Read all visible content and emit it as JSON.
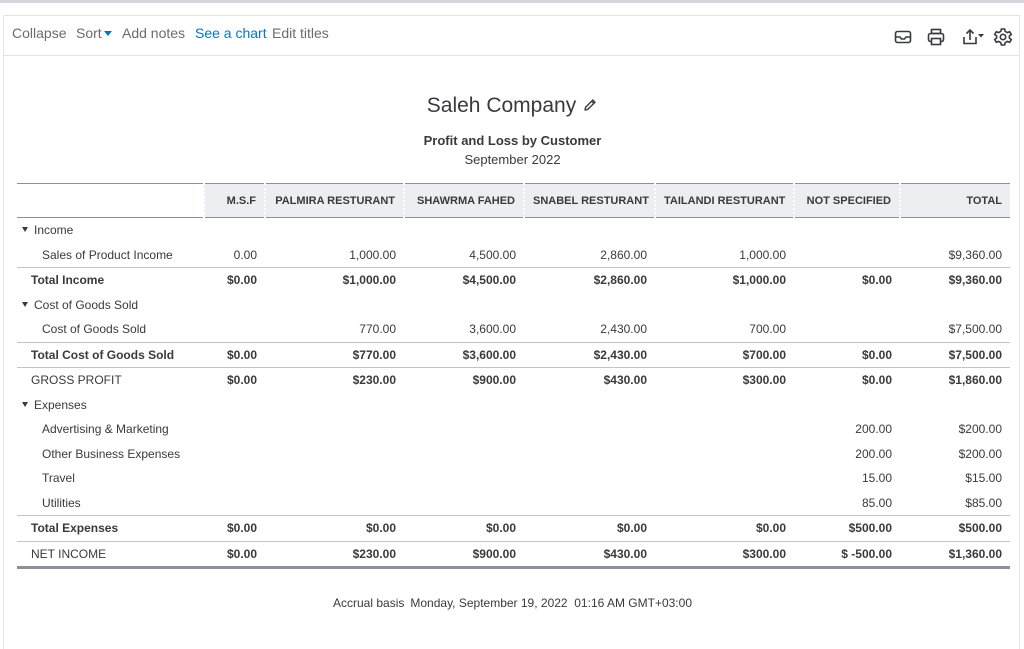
{
  "toolbar": {
    "collapse": "Collapse",
    "sort": "Sort",
    "add_notes": "Add notes",
    "see_chart": "See a chart",
    "edit_titles": "Edit titles",
    "icons": [
      "email-icon",
      "print-icon",
      "export-icon",
      "settings-icon"
    ]
  },
  "report": {
    "company": "Saleh Company",
    "title": "Profit and Loss by Customer",
    "period": "September 2022"
  },
  "columns": [
    "M.S.F",
    "PALMIRA RESTURANT",
    "SHAWRMA FAHED",
    "SNABEL RESTURANT",
    "TAILANDI RESTURANT",
    "NOT SPECIFIED",
    "TOTAL"
  ],
  "rows": [
    {
      "label": "Income",
      "type": "section",
      "cells": [
        "",
        "",
        "",
        "",
        "",
        "",
        ""
      ]
    },
    {
      "label": "Sales of Product Income",
      "type": "sub",
      "cells": [
        "0.00",
        "1,000.00",
        "4,500.00",
        "2,860.00",
        "1,000.00",
        "",
        "$9,360.00"
      ]
    },
    {
      "label": "Total Income",
      "type": "total",
      "cells": [
        "$0.00",
        "$1,000.00",
        "$4,500.00",
        "$2,860.00",
        "$1,000.00",
        "$0.00",
        "$9,360.00"
      ]
    },
    {
      "label": "Cost of Goods Sold",
      "type": "section",
      "cells": [
        "",
        "",
        "",
        "",
        "",
        "",
        ""
      ]
    },
    {
      "label": "Cost of Goods Sold",
      "type": "sub",
      "cells": [
        "",
        "770.00",
        "3,600.00",
        "2,430.00",
        "700.00",
        "",
        "$7,500.00"
      ]
    },
    {
      "label": "Total Cost of Goods Sold",
      "type": "total",
      "cells": [
        "$0.00",
        "$770.00",
        "$3,600.00",
        "$2,430.00",
        "$700.00",
        "$0.00",
        "$7,500.00"
      ]
    },
    {
      "label": "GROSS PROFIT",
      "type": "gross",
      "cells": [
        "$0.00",
        "$230.00",
        "$900.00",
        "$430.00",
        "$300.00",
        "$0.00",
        "$1,860.00"
      ]
    },
    {
      "label": "Expenses",
      "type": "section",
      "cells": [
        "",
        "",
        "",
        "",
        "",
        "",
        ""
      ]
    },
    {
      "label": "Advertising & Marketing",
      "type": "sub",
      "cells": [
        "",
        "",
        "",
        "",
        "",
        "200.00",
        "$200.00"
      ]
    },
    {
      "label": "Other Business Expenses",
      "type": "sub",
      "cells": [
        "",
        "",
        "",
        "",
        "",
        "200.00",
        "$200.00"
      ]
    },
    {
      "label": "Travel",
      "type": "sub",
      "cells": [
        "",
        "",
        "",
        "",
        "",
        "15.00",
        "$15.00"
      ]
    },
    {
      "label": "Utilities",
      "type": "sub",
      "cells": [
        "",
        "",
        "",
        "",
        "",
        "85.00",
        "$85.00"
      ]
    },
    {
      "label": "Total Expenses",
      "type": "total",
      "cells": [
        "$0.00",
        "$0.00",
        "$0.00",
        "$0.00",
        "$0.00",
        "$500.00",
        "$500.00"
      ]
    },
    {
      "label": "NET INCOME",
      "type": "net",
      "cells": [
        "$0.00",
        "$230.00",
        "$900.00",
        "$430.00",
        "$300.00",
        "$ -500.00",
        "$1,360.00"
      ]
    }
  ],
  "footer": {
    "basis": "Accrual basis",
    "timestamp": "Monday, September 19, 2022  01:16 AM GMT+03:00"
  }
}
